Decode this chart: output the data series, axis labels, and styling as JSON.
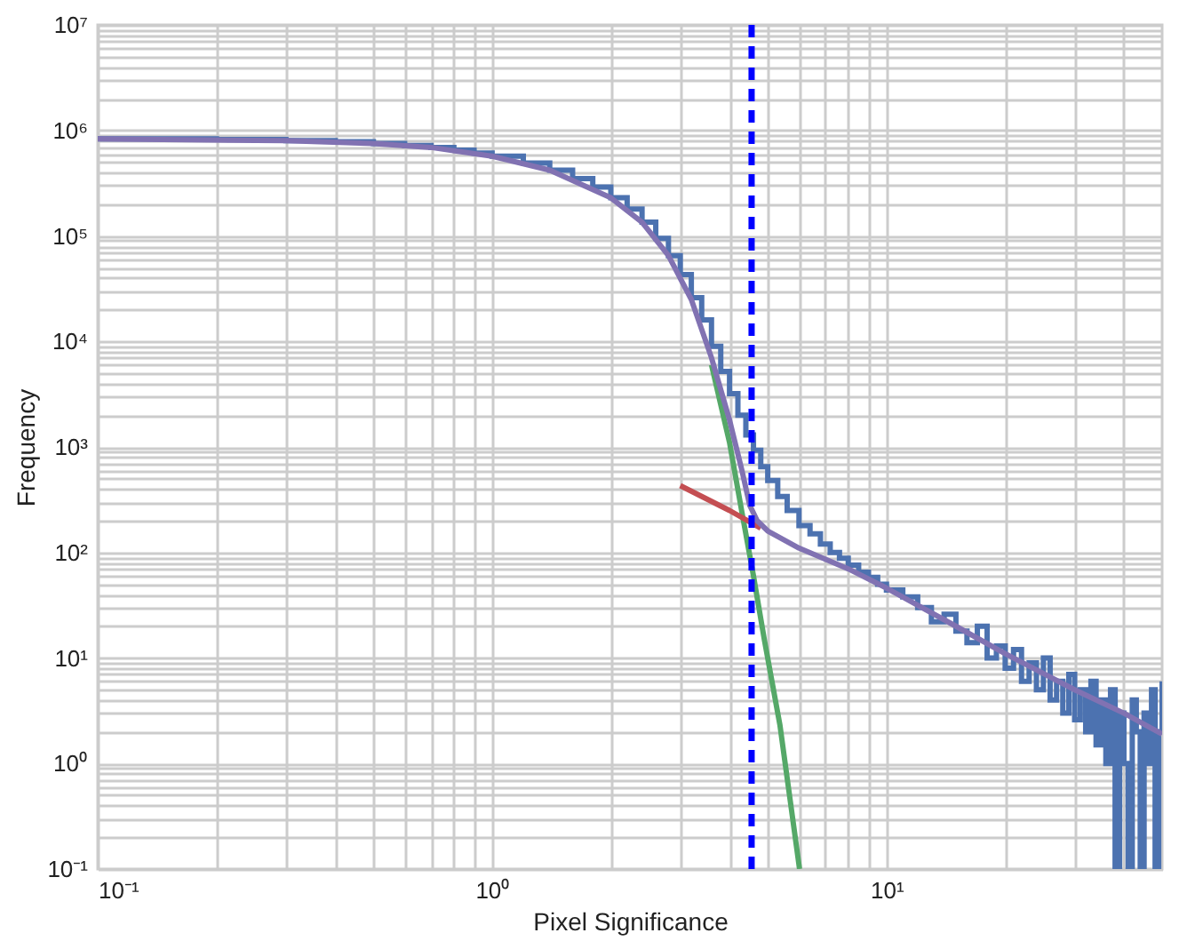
{
  "chart_data": {
    "type": "line",
    "xlabel": "Pixel Significance",
    "ylabel": "Frequency",
    "log": "xy",
    "grid": true,
    "xlim": [
      0.1,
      50
    ],
    "ylim": [
      0.1,
      10000000
    ],
    "xticks": [
      {
        "value": 0.1,
        "label": "10⁻¹"
      },
      {
        "value": 0.2,
        "label": null
      },
      {
        "value": 0.3,
        "label": null
      },
      {
        "value": 0.4,
        "label": null
      },
      {
        "value": 0.5,
        "label": null
      },
      {
        "value": 0.6,
        "label": null
      },
      {
        "value": 0.7,
        "label": null
      },
      {
        "value": 0.8,
        "label": null
      },
      {
        "value": 0.9,
        "label": null
      },
      {
        "value": 1,
        "label": "10⁰"
      },
      {
        "value": 2,
        "label": null
      },
      {
        "value": 3,
        "label": null
      },
      {
        "value": 4,
        "label": null
      },
      {
        "value": 5,
        "label": null
      },
      {
        "value": 6,
        "label": null
      },
      {
        "value": 7,
        "label": null
      },
      {
        "value": 8,
        "label": null
      },
      {
        "value": 9,
        "label": null
      },
      {
        "value": 10,
        "label": "10¹"
      },
      {
        "value": 20,
        "label": null
      },
      {
        "value": 30,
        "label": null
      },
      {
        "value": 40,
        "label": null
      }
    ],
    "yticks": [
      {
        "value": 0.1,
        "label": "10⁻¹"
      },
      {
        "value": 0.2,
        "label": null
      },
      {
        "value": 0.3,
        "label": null
      },
      {
        "value": 0.4,
        "label": null
      },
      {
        "value": 0.5,
        "label": null
      },
      {
        "value": 0.6,
        "label": null
      },
      {
        "value": 0.7,
        "label": null
      },
      {
        "value": 0.8,
        "label": null
      },
      {
        "value": 0.9,
        "label": null
      },
      {
        "value": 1,
        "label": "10⁰"
      },
      {
        "value": 2,
        "label": null
      },
      {
        "value": 3,
        "label": null
      },
      {
        "value": 4,
        "label": null
      },
      {
        "value": 5,
        "label": null
      },
      {
        "value": 6,
        "label": null
      },
      {
        "value": 7,
        "label": null
      },
      {
        "value": 8,
        "label": null
      },
      {
        "value": 9,
        "label": null
      },
      {
        "value": 10,
        "label": "10¹"
      },
      {
        "value": 20,
        "label": null
      },
      {
        "value": 30,
        "label": null
      },
      {
        "value": 40,
        "label": null
      },
      {
        "value": 50,
        "label": null
      },
      {
        "value": 60,
        "label": null
      },
      {
        "value": 70,
        "label": null
      },
      {
        "value": 80,
        "label": null
      },
      {
        "value": 90,
        "label": null
      },
      {
        "value": 100,
        "label": "10²"
      },
      {
        "value": 200,
        "label": null
      },
      {
        "value": 300,
        "label": null
      },
      {
        "value": 400,
        "label": null
      },
      {
        "value": 500,
        "label": null
      },
      {
        "value": 600,
        "label": null
      },
      {
        "value": 700,
        "label": null
      },
      {
        "value": 800,
        "label": null
      },
      {
        "value": 900,
        "label": null
      },
      {
        "value": 1000,
        "label": "10³"
      },
      {
        "value": 2000,
        "label": null
      },
      {
        "value": 3000,
        "label": null
      },
      {
        "value": 4000,
        "label": null
      },
      {
        "value": 5000,
        "label": null
      },
      {
        "value": 6000,
        "label": null
      },
      {
        "value": 7000,
        "label": null
      },
      {
        "value": 8000,
        "label": null
      },
      {
        "value": 9000,
        "label": null
      },
      {
        "value": 10000,
        "label": "10⁴"
      },
      {
        "value": 20000,
        "label": null
      },
      {
        "value": 30000,
        "label": null
      },
      {
        "value": 40000,
        "label": null
      },
      {
        "value": 50000,
        "label": null
      },
      {
        "value": 60000,
        "label": null
      },
      {
        "value": 70000,
        "label": null
      },
      {
        "value": 80000,
        "label": null
      },
      {
        "value": 90000,
        "label": null
      },
      {
        "value": 100000,
        "label": "10⁵"
      },
      {
        "value": 200000,
        "label": null
      },
      {
        "value": 300000,
        "label": null
      },
      {
        "value": 400000,
        "label": null
      },
      {
        "value": 500000,
        "label": null
      },
      {
        "value": 600000,
        "label": null
      },
      {
        "value": 700000,
        "label": null
      },
      {
        "value": 800000,
        "label": null
      },
      {
        "value": 900000,
        "label": null
      },
      {
        "value": 1000000,
        "label": "10⁶"
      },
      {
        "value": 2000000,
        "label": null
      },
      {
        "value": 3000000,
        "label": null
      },
      {
        "value": 4000000,
        "label": null
      },
      {
        "value": 5000000,
        "label": null
      },
      {
        "value": 6000000,
        "label": null
      },
      {
        "value": 7000000,
        "label": null
      },
      {
        "value": 8000000,
        "label": null
      },
      {
        "value": 9000000,
        "label": null
      },
      {
        "value": 10000000,
        "label": "10⁷"
      }
    ],
    "ref_lines": [
      {
        "axis": "x",
        "value": 4.55,
        "color": "#0000ff",
        "line_style": "dashed"
      }
    ],
    "series": [
      {
        "type": "step",
        "color": "#4c72b0",
        "x": [
          0.1,
          0.2,
          0.3,
          0.4,
          0.5,
          0.6,
          0.7,
          0.8,
          0.9,
          1.0,
          1.2,
          1.4,
          1.6,
          1.8,
          2.0,
          2.2,
          2.4,
          2.6,
          2.8,
          3.0,
          3.2,
          3.4,
          3.6,
          3.8,
          4.0,
          4.2,
          4.4,
          4.6,
          4.8,
          5.0,
          5.3,
          5.6,
          6.0,
          6.4,
          6.8,
          7.2,
          7.6,
          8.0,
          8.5,
          9.0,
          9.5,
          10,
          11,
          12,
          13,
          14,
          15,
          16,
          17,
          18,
          19,
          20,
          21,
          22,
          23,
          24,
          25,
          26,
          27,
          28,
          29,
          30,
          31,
          32,
          33,
          34,
          35,
          36,
          37,
          38,
          39,
          40,
          41,
          42,
          43,
          44,
          45,
          46,
          47,
          48,
          49,
          50
        ],
        "values": [
          830000,
          820000,
          800000,
          780000,
          750000,
          720000,
          690000,
          650000,
          610000,
          570000,
          490000,
          420000,
          350000,
          290000,
          230000,
          180000,
          135000,
          95000,
          65000,
          43000,
          26000,
          16000,
          9000,
          5200,
          3200,
          2000,
          1300,
          930,
          650,
          480,
          340,
          250,
          180,
          150,
          120,
          100,
          88,
          76,
          65,
          58,
          50,
          44,
          38,
          30,
          22,
          26,
          18,
          14,
          20,
          10,
          13,
          8,
          12,
          6,
          9,
          5,
          10,
          4,
          6,
          3,
          7,
          2.6,
          5,
          2,
          6,
          1.5,
          4,
          1,
          5,
          0.1,
          3,
          1,
          0.1,
          4,
          2,
          0.1,
          3,
          1,
          5,
          0.1,
          2,
          6
        ]
      },
      {
        "color": "#55a868",
        "x": [
          3.6,
          4.0,
          4.3,
          4.6,
          4.9,
          5.37,
          6.02
        ],
        "values": [
          6000,
          1100,
          240,
          60,
          15,
          2.3,
          0.1
        ]
      },
      {
        "color": "#c44e52",
        "x": [
          3.0,
          4.0,
          4.8
        ],
        "values": [
          430,
          250,
          170
        ]
      },
      {
        "color": "#8172b2",
        "x": [
          0.1,
          0.3,
          0.5,
          0.7,
          1.0,
          1.4,
          2.0,
          2.4,
          2.8,
          3.2,
          3.6,
          4.0,
          4.3,
          4.5,
          4.7,
          5.0,
          6,
          8,
          10,
          15,
          20,
          30,
          40,
          50
        ],
        "values": [
          830000,
          800000,
          750000,
          690000,
          570000,
          420000,
          230000,
          135000,
          65000,
          25000,
          7000,
          1800,
          600,
          280,
          200,
          160,
          110,
          70,
          46,
          20,
          11,
          5,
          3,
          1.9
        ]
      }
    ]
  }
}
